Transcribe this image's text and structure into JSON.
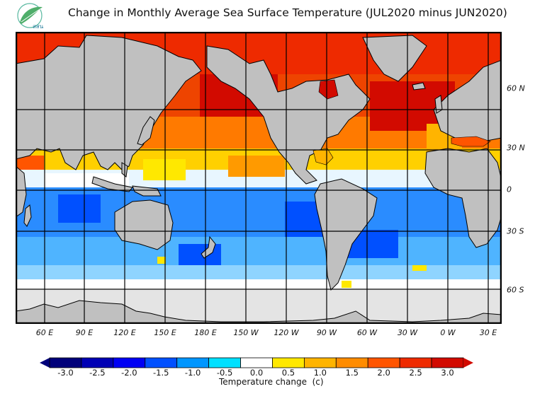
{
  "header": {
    "title": "Change in Monthly Average Sea Surface Temperature (JUL2020 minus JUN2020)",
    "logo_text": "สสน",
    "logo_icon": "leaf-logo-icon"
  },
  "map": {
    "projection": "equirectangular",
    "lon_labels": [
      "60 E",
      "90 E",
      "120 E",
      "150 E",
      "180 E",
      "150 W",
      "120 W",
      "90 W",
      "60 W",
      "30 W",
      "0 W",
      "30 E"
    ],
    "lat_labels": [
      "60 N",
      "30 N",
      "0",
      "30 S",
      "60 S"
    ],
    "colors": {
      "land": "#c0c0c0",
      "ice_nodata": "#e4e4e4",
      "coast": "#000000"
    }
  },
  "legend": {
    "title": "Temperature change  (c)",
    "ticks": [
      "-3.0",
      "-2.5",
      "-2.0",
      "-1.5",
      "-1.0",
      "-0.5",
      "0.0",
      "0.5",
      "1.0",
      "1.5",
      "2.0",
      "2.5",
      "3.0"
    ],
    "colors": [
      "#00007a",
      "#0000b4",
      "#0000f4",
      "#0050ff",
      "#0096ff",
      "#00e0ff",
      "#ffffff",
      "#ffe800",
      "#ffb400",
      "#ff8c00",
      "#ff5500",
      "#ee2a00",
      "#d20a00"
    ],
    "under_color": "#00007a",
    "over_color": "#d20a00"
  }
}
